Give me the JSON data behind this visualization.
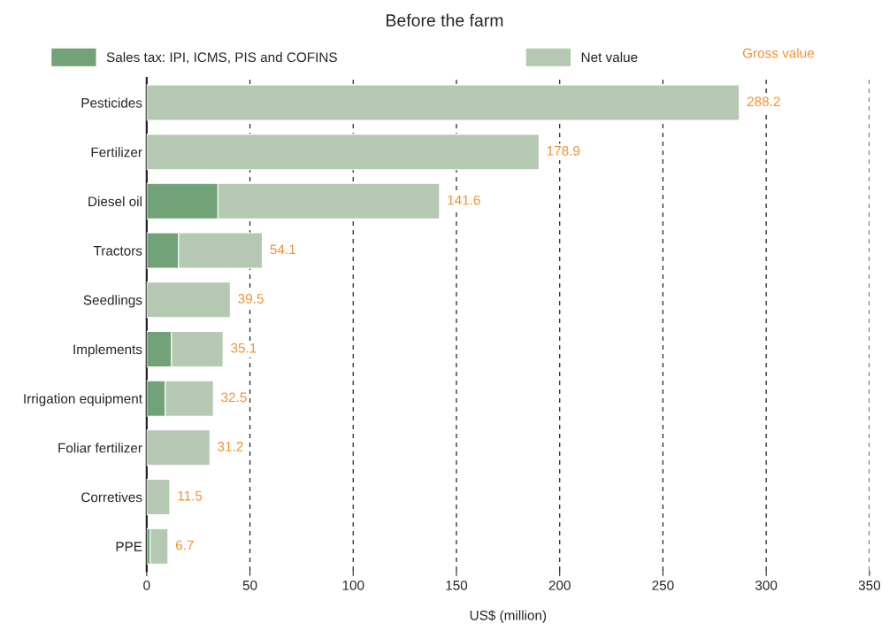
{
  "chart_data": {
    "type": "bar",
    "orientation": "horizontal",
    "stacked": true,
    "title": "Before the farm",
    "xlabel": "US$ (million)",
    "categories": [
      "Pesticides",
      "Fertilizer",
      "Diesel oil",
      "Tractors",
      "Seedlings",
      "Implements",
      "Irrigation equipment",
      "Foliar fertilizer",
      "Corretives",
      "PPE"
    ],
    "series": [
      {
        "name": "Sales tax: IPI, ICMS, PIS and COFINS",
        "color": "#72a277",
        "values": [
          0,
          0,
          34.5,
          15.5,
          0,
          12,
          9,
          0,
          0,
          1.7
        ]
      },
      {
        "name": "Net value",
        "color": "#b5c8b2",
        "values": [
          287,
          190,
          107.3,
          40.5,
          40.5,
          25,
          23.3,
          30.6,
          11.2,
          8.6
        ]
      }
    ],
    "annotations": [
      "Gross value",
      {
        "text": "288.2",
        "x": 287,
        "y": "Pesticides"
      },
      {
        "text": "178.9",
        "x": 190,
        "y": "Fertilizer"
      },
      {
        "text": "141.6",
        "x": 141.8,
        "y": "Diesel oil"
      },
      {
        "text": "54.1",
        "x": 56,
        "y": "Tractors"
      },
      {
        "text": "39.5",
        "x": 40.5,
        "y": "Seedlings"
      },
      {
        "text": "35.1",
        "x": 37,
        "y": "Implements"
      },
      {
        "text": "32.5",
        "x": 32.3,
        "y": "Irrigation equipment"
      },
      {
        "text": "31.2",
        "x": 30.6,
        "y": "Foliar fertilizer"
      },
      {
        "text": "11.5",
        "x": 11.2,
        "y": "Corretives"
      },
      {
        "text": "6.7",
        "x": 10.3,
        "y": "PPE"
      }
    ],
    "xlim": [
      0,
      350
    ],
    "xticks": [
      0,
      50,
      100,
      150,
      200,
      250,
      300,
      350
    ],
    "grid": "x",
    "legend": "top"
  }
}
